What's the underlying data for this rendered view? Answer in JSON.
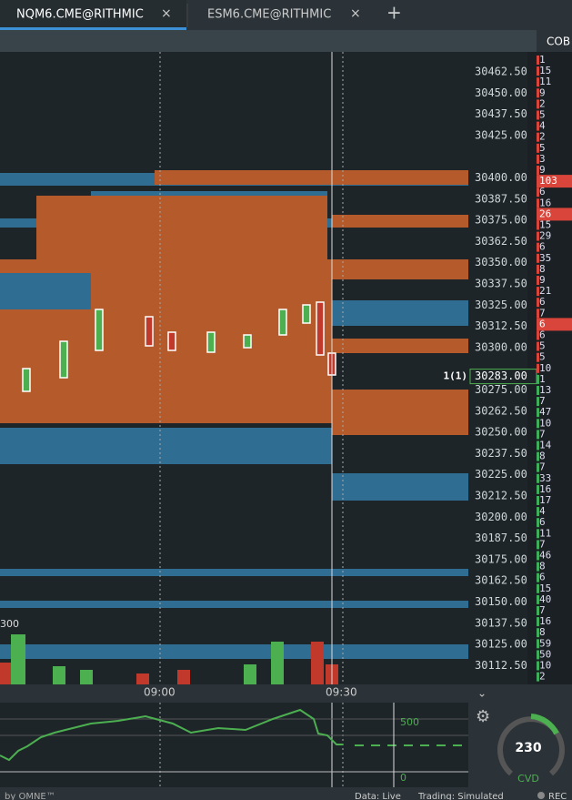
{
  "tabs": [
    {
      "label": "NQM6.CME@RITHMIC"
    },
    {
      "label": "ESM6.CME@RITHMIC"
    }
  ],
  "panel_header": "COB",
  "price_axis": {
    "prices": [
      "30462.50",
      "30450.00",
      "30437.50",
      "30425.00",
      "30400.00",
      "30387.50",
      "30375.00",
      "30362.50",
      "30350.00",
      "30337.50",
      "30325.00",
      "30312.50",
      "30300.00",
      "30275.00",
      "30262.50",
      "30250.00",
      "30237.50",
      "30225.00",
      "30212.50",
      "30200.00",
      "30187.50",
      "30175.00",
      "30162.50",
      "30150.00",
      "30137.50",
      "30125.00",
      "30112.50"
    ],
    "current_price": "30283.00",
    "position": "1(1)"
  },
  "ladder": [
    "1",
    "15",
    "11",
    "9",
    "2",
    "5",
    "4",
    "2",
    "5",
    "3",
    "9",
    {
      "text": "103",
      "side": "ask"
    },
    "6",
    "16",
    {
      "text": "26",
      "side": "ask"
    },
    "15",
    "29",
    "6",
    "35",
    "8",
    "9",
    "21",
    "6",
    "7",
    {
      "text": "6",
      "side": "ask"
    },
    "6",
    "5",
    "5",
    "10",
    "1",
    "13",
    "7",
    "47",
    "10",
    "7",
    "14",
    "8",
    "7",
    "33",
    "16",
    "17",
    "4",
    "6",
    "11",
    "7",
    "46",
    "8",
    "6",
    "15",
    "40",
    "7",
    "16",
    "8",
    "59",
    "50",
    "10",
    "2"
  ],
  "volume_label": "300",
  "time_labels": [
    "09:00",
    "09:30"
  ],
  "cvd": {
    "scale_top": "500",
    "scale_zero": "0",
    "gauge_value": "230",
    "gauge_label": "CVD"
  },
  "footer": {
    "brand": "by OMNE™",
    "data": "Data: Live",
    "trading": "Trading: Simulated",
    "rec": "REC"
  }
}
